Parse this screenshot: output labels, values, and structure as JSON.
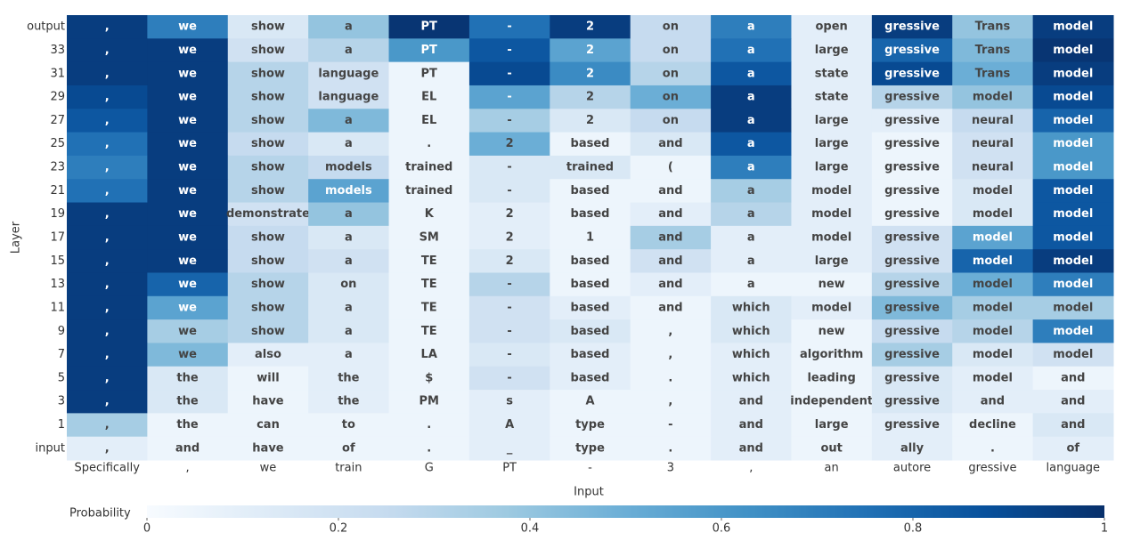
{
  "chart_data": {
    "type": "heatmap",
    "colormap": "Blues",
    "x_label": "Input",
    "y_label": "Layer",
    "x_categories": [
      "Specifically",
      ",",
      "we",
      "train",
      "G",
      "PT",
      "-",
      "3",
      ",",
      "an",
      "autore",
      "gressive",
      "language"
    ],
    "y_categories": [
      "output",
      "33",
      "31",
      "29",
      "27",
      "25",
      "23",
      "21",
      "19",
      "17",
      "15",
      "13",
      "11",
      "9",
      "7",
      "5",
      "3",
      "1",
      "input"
    ],
    "cell_labels": [
      [
        ",",
        "we",
        "show",
        "a",
        "PT",
        "-",
        "2",
        "on",
        "a",
        "open",
        "gressive",
        "Trans",
        "model"
      ],
      [
        ",",
        "we",
        "show",
        "a",
        "PT",
        "-",
        "2",
        "on",
        "a",
        "large",
        "gressive",
        "Trans",
        "model"
      ],
      [
        ",",
        "we",
        "show",
        "language",
        "PT",
        "-",
        "2",
        "on",
        "a",
        "state",
        "gressive",
        "Trans",
        "model"
      ],
      [
        ",",
        "we",
        "show",
        "language",
        "EL",
        "-",
        "2",
        "on",
        "a",
        "state",
        "gressive",
        "model",
        "model"
      ],
      [
        ",",
        "we",
        "show",
        "a",
        "EL",
        "-",
        "2",
        "on",
        "a",
        "large",
        "gressive",
        "neural",
        "model"
      ],
      [
        ",",
        "we",
        "show",
        "a",
        ".",
        "2",
        "based",
        "and",
        "a",
        "large",
        "gressive",
        "neural",
        "model"
      ],
      [
        ",",
        "we",
        "show",
        "models",
        "trained",
        "-",
        "trained",
        "(",
        "a",
        "large",
        "gressive",
        "neural",
        "model"
      ],
      [
        ",",
        "we",
        "show",
        "models",
        "trained",
        "-",
        "based",
        "and",
        "a",
        "model",
        "gressive",
        "model",
        "model"
      ],
      [
        ",",
        "we",
        "demonstrate",
        "a",
        "K",
        "2",
        "based",
        "and",
        "a",
        "model",
        "gressive",
        "model",
        "model"
      ],
      [
        ",",
        "we",
        "show",
        "a",
        "SM",
        "2",
        "1",
        "and",
        "a",
        "model",
        "gressive",
        "model",
        "model"
      ],
      [
        ",",
        "we",
        "show",
        "a",
        "TE",
        "2",
        "based",
        "and",
        "a",
        "large",
        "gressive",
        "model",
        "model"
      ],
      [
        ",",
        "we",
        "show",
        "on",
        "TE",
        "-",
        "based",
        "and",
        "a",
        "new",
        "gressive",
        "model",
        "model"
      ],
      [
        ",",
        "we",
        "show",
        "a",
        "TE",
        "-",
        "based",
        "and",
        "which",
        "model",
        "gressive",
        "model",
        "model"
      ],
      [
        ",",
        "we",
        "show",
        "a",
        "TE",
        "-",
        "based",
        ",",
        "which",
        "new",
        "gressive",
        "model",
        "model"
      ],
      [
        ",",
        "we",
        "also",
        "a",
        "LA",
        "-",
        "based",
        ",",
        "which",
        "algorithm",
        "gressive",
        "model",
        "model"
      ],
      [
        ",",
        "the",
        "will",
        "the",
        "$",
        "-",
        "based",
        ".",
        "which",
        "leading",
        "gressive",
        "model",
        "and"
      ],
      [
        ",",
        "the",
        "have",
        "the",
        "PM",
        "s",
        "A",
        ",",
        "and",
        "independent",
        "gressive",
        "and",
        "and"
      ],
      [
        ",",
        "the",
        "can",
        "to",
        ".",
        "A",
        "type",
        "-",
        "and",
        "large",
        "gressive",
        "decline",
        "and"
      ],
      [
        ",",
        "and",
        "have",
        "of",
        ".",
        "_",
        "type",
        ".",
        "and",
        "out",
        "ally",
        ".",
        "of"
      ]
    ],
    "values": [
      [
        0.95,
        0.7,
        0.15,
        0.4,
        0.98,
        0.75,
        0.95,
        0.25,
        0.7,
        0.1,
        0.95,
        0.4,
        0.95
      ],
      [
        0.95,
        0.95,
        0.2,
        0.3,
        0.6,
        0.85,
        0.55,
        0.25,
        0.75,
        0.1,
        0.8,
        0.45,
        0.98
      ],
      [
        0.95,
        0.95,
        0.3,
        0.2,
        0.05,
        0.9,
        0.65,
        0.3,
        0.85,
        0.1,
        0.9,
        0.5,
        0.95
      ],
      [
        0.9,
        0.95,
        0.3,
        0.2,
        0.05,
        0.55,
        0.3,
        0.5,
        0.95,
        0.1,
        0.3,
        0.4,
        0.9
      ],
      [
        0.85,
        0.95,
        0.3,
        0.45,
        0.05,
        0.35,
        0.15,
        0.25,
        0.95,
        0.1,
        0.1,
        0.25,
        0.8
      ],
      [
        0.75,
        0.95,
        0.25,
        0.15,
        0.05,
        0.5,
        0.05,
        0.15,
        0.85,
        0.1,
        0.05,
        0.2,
        0.6
      ],
      [
        0.7,
        0.95,
        0.3,
        0.25,
        0.05,
        0.15,
        0.15,
        0.05,
        0.7,
        0.1,
        0.05,
        0.2,
        0.6
      ],
      [
        0.75,
        0.95,
        0.3,
        0.55,
        0.05,
        0.15,
        0.05,
        0.05,
        0.35,
        0.1,
        0.05,
        0.15,
        0.85
      ],
      [
        0.95,
        0.95,
        0.2,
        0.4,
        0.05,
        0.1,
        0.05,
        0.1,
        0.3,
        0.1,
        0.05,
        0.15,
        0.85
      ],
      [
        0.95,
        0.95,
        0.25,
        0.15,
        0.05,
        0.1,
        0.05,
        0.35,
        0.1,
        0.1,
        0.2,
        0.55,
        0.85
      ],
      [
        0.95,
        0.95,
        0.25,
        0.2,
        0.05,
        0.15,
        0.05,
        0.2,
        0.1,
        0.1,
        0.2,
        0.8,
        0.95
      ],
      [
        0.95,
        0.8,
        0.3,
        0.15,
        0.05,
        0.3,
        0.05,
        0.1,
        0.05,
        0.05,
        0.3,
        0.5,
        0.7
      ],
      [
        0.95,
        0.55,
        0.3,
        0.15,
        0.05,
        0.2,
        0.1,
        0.05,
        0.15,
        0.1,
        0.45,
        0.35,
        0.35
      ],
      [
        0.95,
        0.35,
        0.3,
        0.15,
        0.05,
        0.2,
        0.15,
        0.05,
        0.15,
        0.05,
        0.25,
        0.3,
        0.7
      ],
      [
        0.95,
        0.45,
        0.1,
        0.1,
        0.05,
        0.15,
        0.1,
        0.05,
        0.1,
        0.05,
        0.35,
        0.15,
        0.2
      ],
      [
        0.95,
        0.15,
        0.05,
        0.1,
        0.05,
        0.2,
        0.1,
        0.05,
        0.1,
        0.05,
        0.15,
        0.1,
        0.05
      ],
      [
        0.95,
        0.15,
        0.05,
        0.1,
        0.05,
        0.1,
        0.05,
        0.05,
        0.1,
        0.05,
        0.15,
        0.1,
        0.1
      ],
      [
        0.35,
        0.05,
        0.05,
        0.05,
        0.05,
        0.1,
        0.05,
        0.05,
        0.1,
        0.05,
        0.1,
        0.05,
        0.15
      ],
      [
        0.1,
        0.05,
        0.05,
        0.05,
        0.05,
        0.1,
        0.05,
        0.05,
        0.1,
        0.05,
        0.1,
        0.05,
        0.1
      ]
    ],
    "colorbar": {
      "label": "Probability",
      "lim": [
        0,
        1
      ],
      "ticks": [
        0,
        0.2,
        0.4,
        0.6,
        0.8,
        1
      ]
    }
  }
}
